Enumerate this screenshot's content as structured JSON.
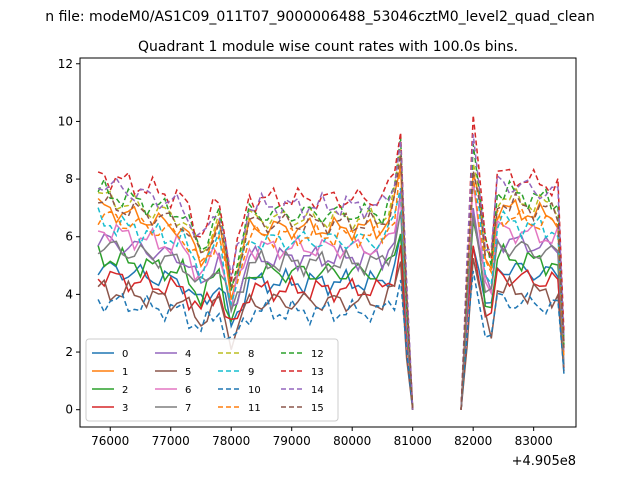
{
  "chart_data": {
    "type": "line",
    "suptitle": "n file: modeM0/AS1C09_011T07_9000006488_53046cztM0_level2_quad_clean",
    "title": "Quadrant 1 module wise count rates with 100.0s bins.",
    "xlabel": "",
    "ylabel": "",
    "x_offset_label": "+4.905e8",
    "xlim": [
      75500,
      83700
    ],
    "ylim": [
      -0.6,
      12.2
    ],
    "xticks": [
      76000,
      77000,
      78000,
      79000,
      80000,
      81000,
      82000,
      83000
    ],
    "xtick_labels": [
      "76000",
      "77000",
      "78000",
      "79000",
      "80000",
      "81000",
      "82000",
      "83000"
    ],
    "yticks": [
      0,
      2,
      4,
      6,
      8,
      10,
      12
    ],
    "ytick_labels": [
      "0",
      "2",
      "4",
      "6",
      "8",
      "10",
      "12"
    ],
    "grid": false,
    "legend_position": "lower-left",
    "legend_columns": 4,
    "segments": [
      {
        "x": [
          75800,
          77200,
          77500,
          77800,
          78000,
          78300,
          80500,
          80700,
          80800,
          80900,
          81000
        ],
        "shape": [
          0.95,
          0.85,
          0.7,
          0.85,
          0.55,
          0.85,
          0.85,
          0.95,
          1.15,
          0.5,
          0.0
        ]
      },
      {
        "x": [
          81800,
          81900,
          82000,
          82100,
          82200,
          82300,
          82400,
          83400,
          83500
        ],
        "shape": [
          0.0,
          0.6,
          1.15,
          0.95,
          0.7,
          0.65,
          0.95,
          0.9,
          0.3
        ]
      }
    ],
    "series": [
      {
        "name": "0",
        "level": 5.2,
        "color": "#1f77b4",
        "dash": "solid"
      },
      {
        "name": "1",
        "level": 7.4,
        "color": "#ff7f0e",
        "dash": "solid"
      },
      {
        "name": "2",
        "level": 5.6,
        "color": "#2ca02c",
        "dash": "solid"
      },
      {
        "name": "3",
        "level": 4.9,
        "color": "#d62728",
        "dash": "solid"
      },
      {
        "name": "4",
        "level": 6.2,
        "color": "#9467bd",
        "dash": "solid"
      },
      {
        "name": "5",
        "level": 4.4,
        "color": "#8c564b",
        "dash": "solid"
      },
      {
        "name": "6",
        "level": 6.6,
        "color": "#e377c2",
        "dash": "solid"
      },
      {
        "name": "7",
        "level": 6.0,
        "color": "#7f7f7f",
        "dash": "solid"
      },
      {
        "name": "8",
        "level": 7.8,
        "color": "#bcbd22",
        "dash": "dashed"
      },
      {
        "name": "9",
        "level": 6.9,
        "color": "#17becf",
        "dash": "dashed"
      },
      {
        "name": "10",
        "level": 4.0,
        "color": "#1f77b4",
        "dash": "dashed"
      },
      {
        "name": "11",
        "level": 7.1,
        "color": "#ff7f0e",
        "dash": "dashed"
      },
      {
        "name": "12",
        "level": 8.0,
        "color": "#2ca02c",
        "dash": "dashed"
      },
      {
        "name": "13",
        "level": 8.6,
        "color": "#d62728",
        "dash": "dashed"
      },
      {
        "name": "14",
        "level": 8.3,
        "color": "#9467bd",
        "dash": "dashed"
      },
      {
        "name": "15",
        "level": 7.6,
        "color": "#8c564b",
        "dash": "dashed"
      }
    ]
  }
}
